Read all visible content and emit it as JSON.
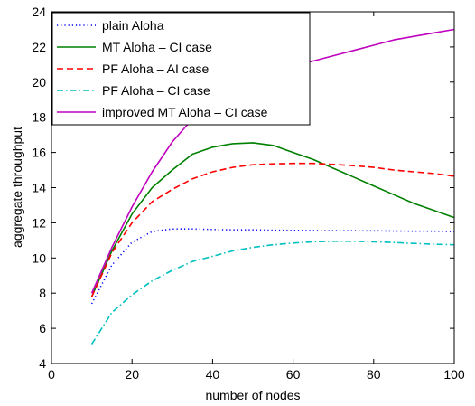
{
  "chart_data": {
    "type": "line",
    "title": "",
    "xlabel": "number of nodes",
    "ylabel": "aggregate throughput",
    "xlim": [
      0,
      100
    ],
    "ylim": [
      4,
      24
    ],
    "xticks": [
      0,
      20,
      40,
      60,
      80,
      100
    ],
    "yticks": [
      4,
      6,
      8,
      10,
      12,
      14,
      16,
      18,
      20,
      22,
      24
    ],
    "grid": false,
    "legend_position": "top-left",
    "x": [
      10,
      15,
      20,
      25,
      30,
      35,
      40,
      45,
      50,
      55,
      60,
      65,
      70,
      75,
      80,
      85,
      90,
      95,
      100
    ],
    "series": [
      {
        "name": "plain Aloha",
        "color": "#0000ff",
        "style": "dotted",
        "values": [
          7.4,
          9.6,
          10.9,
          11.5,
          11.65,
          11.65,
          11.62,
          11.6,
          11.6,
          11.58,
          11.57,
          11.56,
          11.55,
          11.55,
          11.54,
          11.53,
          11.52,
          11.52,
          11.5
        ]
      },
      {
        "name": "MT Aloha – CI case",
        "color": "#008000",
        "style": "solid",
        "values": [
          7.8,
          10.4,
          12.5,
          14.0,
          15.0,
          15.9,
          16.3,
          16.5,
          16.55,
          16.4,
          16.0,
          15.6,
          15.1,
          14.6,
          14.1,
          13.6,
          13.1,
          12.7,
          12.3
        ]
      },
      {
        "name": "PF Aloha – AI case",
        "color": "#ff0000",
        "style": "dashed",
        "values": [
          7.8,
          10.3,
          12.0,
          13.2,
          13.9,
          14.5,
          14.9,
          15.15,
          15.3,
          15.35,
          15.38,
          15.38,
          15.32,
          15.25,
          15.15,
          15.0,
          14.9,
          14.8,
          14.65
        ]
      },
      {
        "name": "PF Aloha – CI case",
        "color": "#00bfbf",
        "style": "dashdot",
        "values": [
          5.1,
          6.9,
          7.9,
          8.7,
          9.3,
          9.8,
          10.1,
          10.4,
          10.6,
          10.75,
          10.85,
          10.92,
          10.95,
          10.95,
          10.92,
          10.88,
          10.83,
          10.78,
          10.75
        ]
      },
      {
        "name": "improved MT Aloha – CI case",
        "color": "#bf00bf",
        "style": "solid",
        "values": [
          8.0,
          10.6,
          12.9,
          14.9,
          16.6,
          17.9,
          18.7,
          19.5,
          20.0,
          20.5,
          20.9,
          21.2,
          21.5,
          21.8,
          22.1,
          22.4,
          22.6,
          22.8,
          23.0
        ]
      }
    ]
  }
}
